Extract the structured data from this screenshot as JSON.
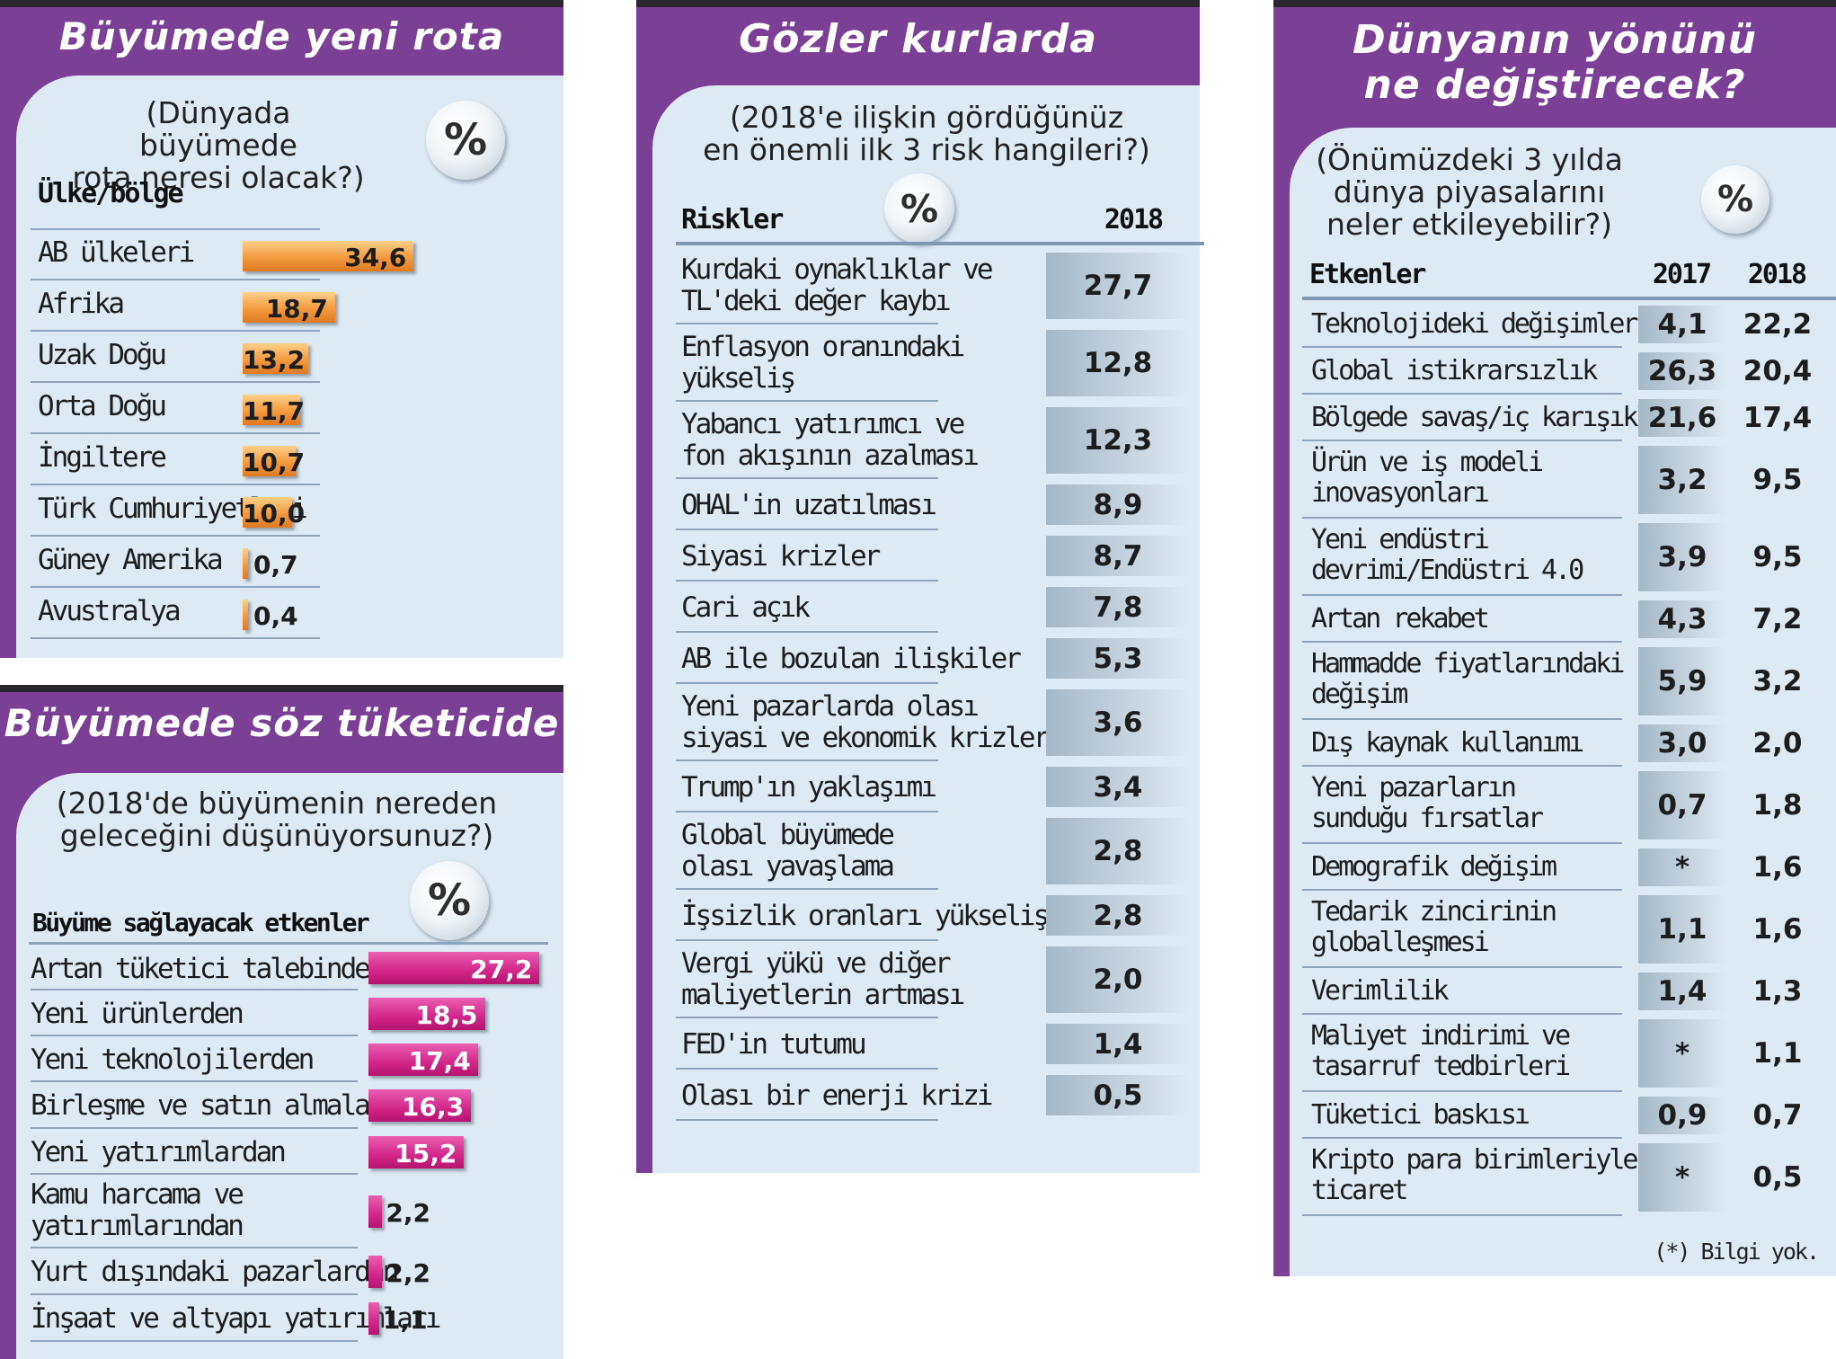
{
  "chart_data": [
    {
      "type": "bar",
      "title": "Büyümede yeni rota",
      "subtitle_lines": [
        "(Dünyada büyümede",
        "rota neresi olacak?)"
      ],
      "unit_badge": "%",
      "column_header": "Ülke/bölge",
      "categories": [
        "AB ülkeleri",
        "Afrika",
        "Uzak Doğu",
        "Orta Doğu",
        "İngiltere",
        "Türk Cumhuriyetleri",
        "Güney Amerika",
        "Avustralya"
      ],
      "values": [
        34.6,
        18.7,
        13.2,
        11.7,
        10.7,
        10.0,
        0.7,
        0.4
      ],
      "value_labels": [
        "34,6",
        "18,7",
        "13,2",
        "11,7",
        "10,7",
        "10,0",
        "0,7",
        "0,4"
      ],
      "bar_color": "#f39a3e"
    },
    {
      "type": "bar",
      "title": "Büyümede söz tüketicide",
      "subtitle_lines": [
        "(2018'de büyümenin nereden",
        "geleceğini düşünüyorsunuz?)"
      ],
      "unit_badge": "%",
      "column_header": "Büyüme sağlayacak etkenler",
      "categories": [
        [
          "Artan tüketici talebinden"
        ],
        [
          "Yeni ürünlerden"
        ],
        [
          "Yeni teknolojilerden"
        ],
        [
          "Birleşme ve satın almalardan"
        ],
        [
          "Yeni yatırımlardan"
        ],
        [
          "Kamu harcama ve",
          "yatırımlarından"
        ],
        [
          "Yurt dışındaki pazarlardan"
        ],
        [
          "İnşaat ve altyapı yatırımları"
        ]
      ],
      "values": [
        27.2,
        18.5,
        17.4,
        16.3,
        15.2,
        2.2,
        2.2,
        1.1
      ],
      "value_labels": [
        "27,2",
        "18,5",
        "17,4",
        "16,3",
        "15,2",
        "2,2",
        "2,2",
        "1,1"
      ],
      "bar_color": "#d1258a"
    },
    {
      "type": "table",
      "title": "Gözler kurlarda",
      "subtitle_lines": [
        "(2018'e ilişkin gördüğünüz",
        "en önemli ilk 3 risk hangileri?)"
      ],
      "unit_badge": "%",
      "columns": [
        "Riskler",
        "2018"
      ],
      "rows": [
        {
          "label": [
            "Kurdaki oynaklıklar ve",
            "TL'deki değer kaybı"
          ],
          "v2018": "27,7"
        },
        {
          "label": [
            "Enflasyon oranındaki",
            "yükseliş"
          ],
          "v2018": "12,8"
        },
        {
          "label": [
            "Yabancı yatırımcı ve",
            "fon akışının azalması"
          ],
          "v2018": "12,3"
        },
        {
          "label": [
            "OHAL'in uzatılması"
          ],
          "v2018": "8,9"
        },
        {
          "label": [
            "Siyasi krizler"
          ],
          "v2018": "8,7"
        },
        {
          "label": [
            "Cari açık"
          ],
          "v2018": "7,8"
        },
        {
          "label": [
            "AB ile bozulan ilişkiler"
          ],
          "v2018": "5,3"
        },
        {
          "label": [
            "Yeni pazarlarda olası",
            "siyasi ve ekonomik krizler"
          ],
          "v2018": "3,6"
        },
        {
          "label": [
            "Trump'ın yaklaşımı"
          ],
          "v2018": "3,4"
        },
        {
          "label": [
            "Global büyümede",
            "olası yavaşlama"
          ],
          "v2018": "2,8"
        },
        {
          "label": [
            "İşsizlik oranları yükselişi"
          ],
          "v2018": "2,8"
        },
        {
          "label": [
            "Vergi yükü ve diğer",
            "maliyetlerin artması"
          ],
          "v2018": "2,0"
        },
        {
          "label": [
            "FED'in tutumu"
          ],
          "v2018": "1,4"
        },
        {
          "label": [
            "Olası bir enerji krizi"
          ],
          "v2018": "0,5"
        }
      ]
    },
    {
      "type": "table",
      "title_lines": [
        "Dünyanın yönünü",
        "ne değiştirecek?"
      ],
      "subtitle_lines": [
        "(Önümüzdeki 3 yılda",
        "dünya piyasalarını",
        "neler etkileyebilir?)"
      ],
      "unit_badge": "%",
      "columns": [
        "Etkenler",
        "2017",
        "2018"
      ],
      "rows": [
        {
          "label": [
            "Teknolojideki değişimler"
          ],
          "v2017": "4,1",
          "v2018": "22,2"
        },
        {
          "label": [
            "Global istikrarsızlık"
          ],
          "v2017": "26,3",
          "v2018": "20,4"
        },
        {
          "label": [
            "Bölgede savaş/iç karışıklık"
          ],
          "v2017": "21,6",
          "v2018": "17,4"
        },
        {
          "label": [
            "Ürün ve iş modeli",
            "inovasyonları"
          ],
          "v2017": "3,2",
          "v2018": "9,5"
        },
        {
          "label": [
            "Yeni endüstri",
            "devrimi/Endüstri 4.0"
          ],
          "v2017": "3,9",
          "v2018": "9,5"
        },
        {
          "label": [
            "Artan rekabet"
          ],
          "v2017": "4,3",
          "v2018": "7,2"
        },
        {
          "label": [
            "Hammadde fiyatlarındaki",
            "değişim"
          ],
          "v2017": "5,9",
          "v2018": "3,2"
        },
        {
          "label": [
            "Dış kaynak kullanımı"
          ],
          "v2017": "3,0",
          "v2018": "2,0"
        },
        {
          "label": [
            "Yeni pazarların",
            "sunduğu fırsatlar"
          ],
          "v2017": "0,7",
          "v2018": "1,8"
        },
        {
          "label": [
            "Demografik değişim"
          ],
          "v2017": "*",
          "v2018": "1,6"
        },
        {
          "label": [
            "Tedarik zincirinin",
            "globalleşmesi"
          ],
          "v2017": "1,1",
          "v2018": "1,6"
        },
        {
          "label": [
            "Verimlilik"
          ],
          "v2017": "1,4",
          "v2018": "1,3"
        },
        {
          "label": [
            "Maliyet indirimi ve",
            "tasarruf tedbirleri"
          ],
          "v2017": "*",
          "v2018": "1,1"
        },
        {
          "label": [
            "Tüketici baskısı"
          ],
          "v2017": "0,9",
          "v2018": "0,7"
        },
        {
          "label": [
            "Kripto para birimleriyle",
            "ticaret"
          ],
          "v2017": "*",
          "v2018": "0,5"
        }
      ],
      "footnote": "(*) Bilgi yok."
    }
  ],
  "colors": {
    "panel": "#7b3f96",
    "inner": "#dde9f3",
    "orange": "#f39a3e",
    "pink": "#d1258a"
  }
}
